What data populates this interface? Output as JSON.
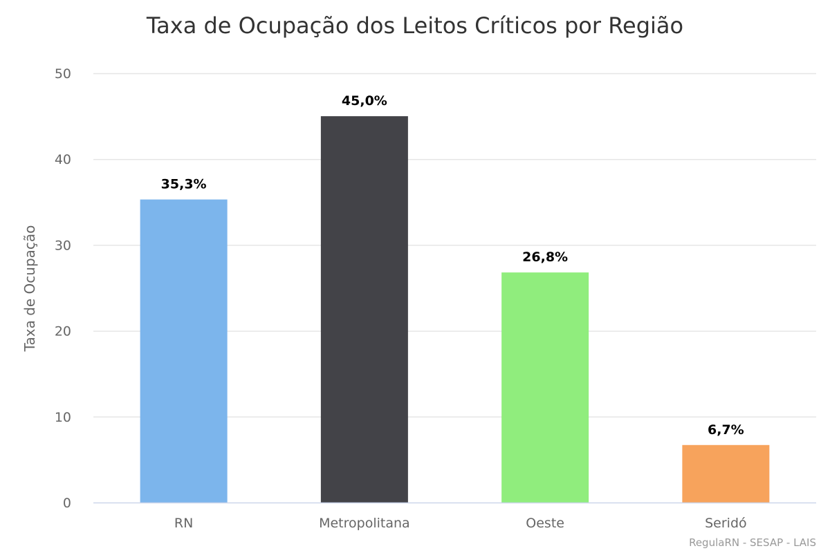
{
  "chart_data": {
    "type": "bar",
    "title": "Taxa de Ocupação dos Leitos Críticos por Região",
    "xlabel": "",
    "ylabel": "Taxa de Ocupação",
    "ylim": [
      0,
      50
    ],
    "yticks": [
      0,
      10,
      20,
      30,
      40,
      50
    ],
    "grid": true,
    "categories": [
      "RN",
      "Metropolitana",
      "Oeste",
      "Seridó"
    ],
    "values": [
      35.3,
      45.0,
      26.8,
      6.7
    ],
    "data_labels": [
      "35,3%",
      "45,0%",
      "26,8%",
      "6,7%"
    ],
    "colors": [
      "#7cb5ec",
      "#434348",
      "#90ed7d",
      "#f7a35c"
    ],
    "credits": "RegulaRN - SESAP - LAIS"
  }
}
